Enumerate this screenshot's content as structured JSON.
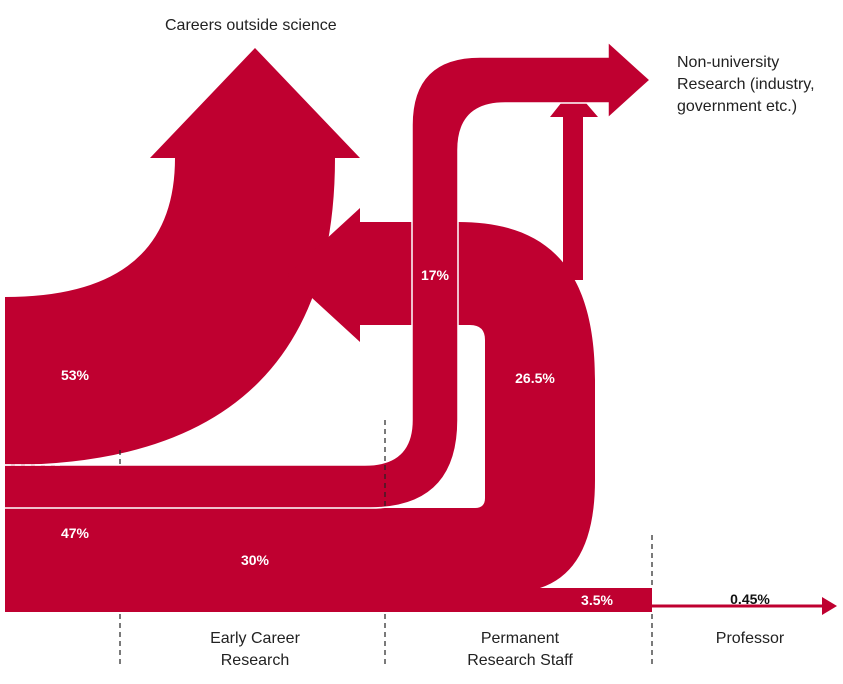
{
  "destinations": {
    "outside": "Careers outside science",
    "non_university": [
      "Non-university",
      "Research (industry,",
      "government etc.)"
    ]
  },
  "flows": {
    "left_upper": "53%",
    "left_lower": "47%",
    "early_to_staff": "30%",
    "early_to_industry": "17%",
    "staff_to_outside": "26.5%",
    "staff_to_professor": "3.5%",
    "professor": "0.45%"
  },
  "stages": [
    [
      "Early Career",
      "Research"
    ],
    [
      "Permanent",
      "Research Staff"
    ],
    [
      "Professor"
    ]
  ]
}
